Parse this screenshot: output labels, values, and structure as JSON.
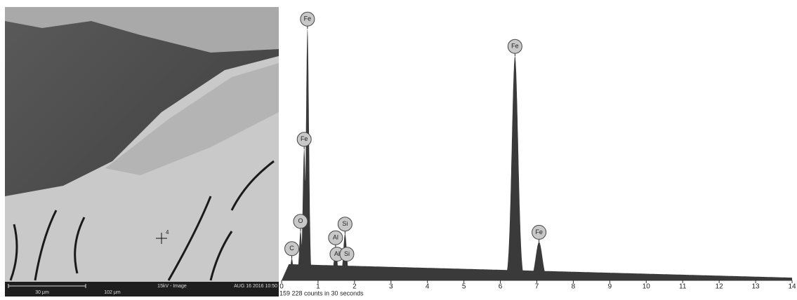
{
  "sem_image": {
    "scale_label": "30 μm",
    "field_width": "102 μm",
    "mode": "15kV - Image",
    "timestamp": "AUG 16 2016 10:50",
    "spot_label": "4"
  },
  "chart_data": {
    "type": "spectrum",
    "color": "#3a3a3a",
    "label_color": "#c8c8c8",
    "xlim": [
      0,
      14
    ],
    "xticks": [
      0,
      1,
      2,
      3,
      4,
      5,
      6,
      7,
      8,
      9,
      10,
      11,
      12,
      13,
      14
    ],
    "ylim": [
      0,
      100
    ],
    "background": [
      6,
      1
    ],
    "footer": "159 228 counts in 30 seconds",
    "peaks": [
      {
        "label": "C",
        "x": 0.28,
        "y": 8
      },
      {
        "label": "O",
        "x": 0.52,
        "y": 18
      },
      {
        "label": "Fe",
        "x": 0.62,
        "y": 48
      },
      {
        "label": "Fe",
        "x": 0.71,
        "y": 92
      },
      {
        "label": "Al",
        "x": 1.48,
        "y": 12
      },
      {
        "label": "Al",
        "x": 1.52,
        "y": 6
      },
      {
        "label": "Si",
        "x": 1.74,
        "y": 17
      },
      {
        "label": "Si",
        "x": 1.79,
        "y": 6
      },
      {
        "label": "Fe",
        "x": 6.4,
        "y": 82
      },
      {
        "label": "Fe",
        "x": 7.06,
        "y": 14
      }
    ]
  }
}
